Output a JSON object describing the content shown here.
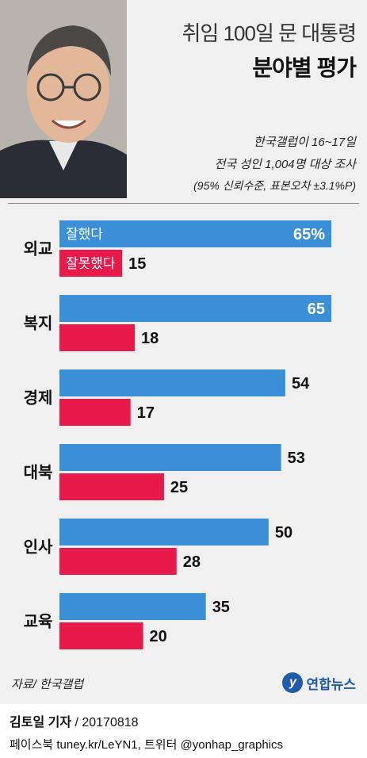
{
  "header": {
    "title_line1": "취임 100일 문 대통령",
    "title_line2": "분야별 평가",
    "source_line1": "한국갤럽이 16~17일",
    "source_line2": "전국 성인 1,004명 대상 조사",
    "source_line3": "(95% 신뢰수준, 표본오차 ±3.1%P)"
  },
  "chart_data": {
    "type": "bar",
    "orientation": "horizontal",
    "categories": [
      "외교",
      "복지",
      "경제",
      "대북",
      "인사",
      "교육"
    ],
    "series": [
      {
        "name": "잘했다",
        "color": "#3a8fd6",
        "values": [
          65,
          65,
          54,
          53,
          50,
          35
        ]
      },
      {
        "name": "잘못했다",
        "color": "#e8194b",
        "values": [
          15,
          18,
          17,
          25,
          28,
          20
        ]
      }
    ],
    "value_labels": {
      "positive": [
        "65%",
        "65",
        "54",
        "53",
        "50",
        "35"
      ],
      "negative": [
        "15",
        "18",
        "17",
        "25",
        "28",
        "20"
      ]
    },
    "xlim": [
      0,
      65
    ],
    "grid": false
  },
  "footer": {
    "source": "자료/ 한국갤럽",
    "logo_text": "연합뉴스",
    "credit_name": "김토일 기자",
    "credit_date": " / 20170818",
    "credit_social": "페이스북 tuney.kr/LeYN1, 트위터 @yonhap_graphics"
  }
}
